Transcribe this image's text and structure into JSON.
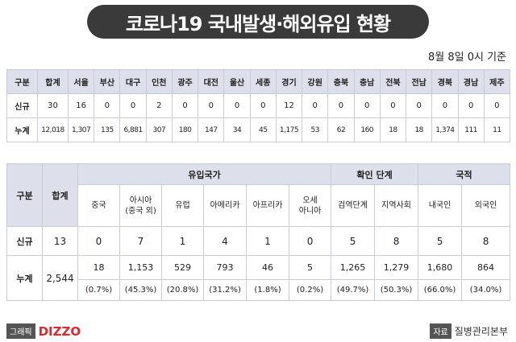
{
  "title": "코로나19 국내발생·해외유입 현황",
  "date": "8월 8일 0시 기준",
  "regional": {
    "header": [
      "구분",
      "합계",
      "서울",
      "부산",
      "대구",
      "인천",
      "광주",
      "대전",
      "울산",
      "세종",
      "경기",
      "강원",
      "충북",
      "충남",
      "전북",
      "전남",
      "경북",
      "경남",
      "제주"
    ],
    "rows": [
      {
        "label": "신규",
        "values": [
          "30",
          "16",
          "0",
          "0",
          "2",
          "0",
          "0",
          "0",
          "0",
          "12",
          "0",
          "0",
          "0",
          "0",
          "0",
          "0",
          "0",
          "0"
        ]
      },
      {
        "label": "누계",
        "values": [
          "12,018",
          "1,307",
          "135",
          "6,881",
          "307",
          "180",
          "147",
          "34",
          "45",
          "1,175",
          "53",
          "62",
          "160",
          "18",
          "18",
          "1,374",
          "111",
          "11"
        ]
      }
    ]
  },
  "overseas": {
    "gubun": "구분",
    "total": "합계",
    "group_country": "유입국가",
    "group_stage": "확인 단계",
    "group_nationality": "국적",
    "columns": [
      "중국",
      "아시아\n(중국 외)",
      "유럽",
      "아메리카",
      "아프리카",
      "오세\n아니아",
      "검역단계",
      "지역사회",
      "내국인",
      "외국인"
    ],
    "new_label": "신규",
    "new_total": "13",
    "new_values": [
      "0",
      "7",
      "1",
      "4",
      "1",
      "0",
      "5",
      "8",
      "5",
      "8"
    ],
    "cum_label": "누계",
    "cum_total": "2,544",
    "cum_values": [
      "18",
      "1,153",
      "529",
      "793",
      "46",
      "5",
      "1,265",
      "1,279",
      "1,680",
      "864"
    ],
    "cum_pcts": [
      "(0.7%)",
      "(45.3%)",
      "(20.8%)",
      "(31.2%)",
      "(1.8%)",
      "(0.2%)",
      "(49.7%)",
      "(50.3%)",
      "(66.0%)",
      "(34.0%)"
    ]
  },
  "footer": {
    "graphic_label": "그래픽",
    "logo": "DIZZO",
    "source_label": "자료",
    "source": "질병관리본부"
  }
}
